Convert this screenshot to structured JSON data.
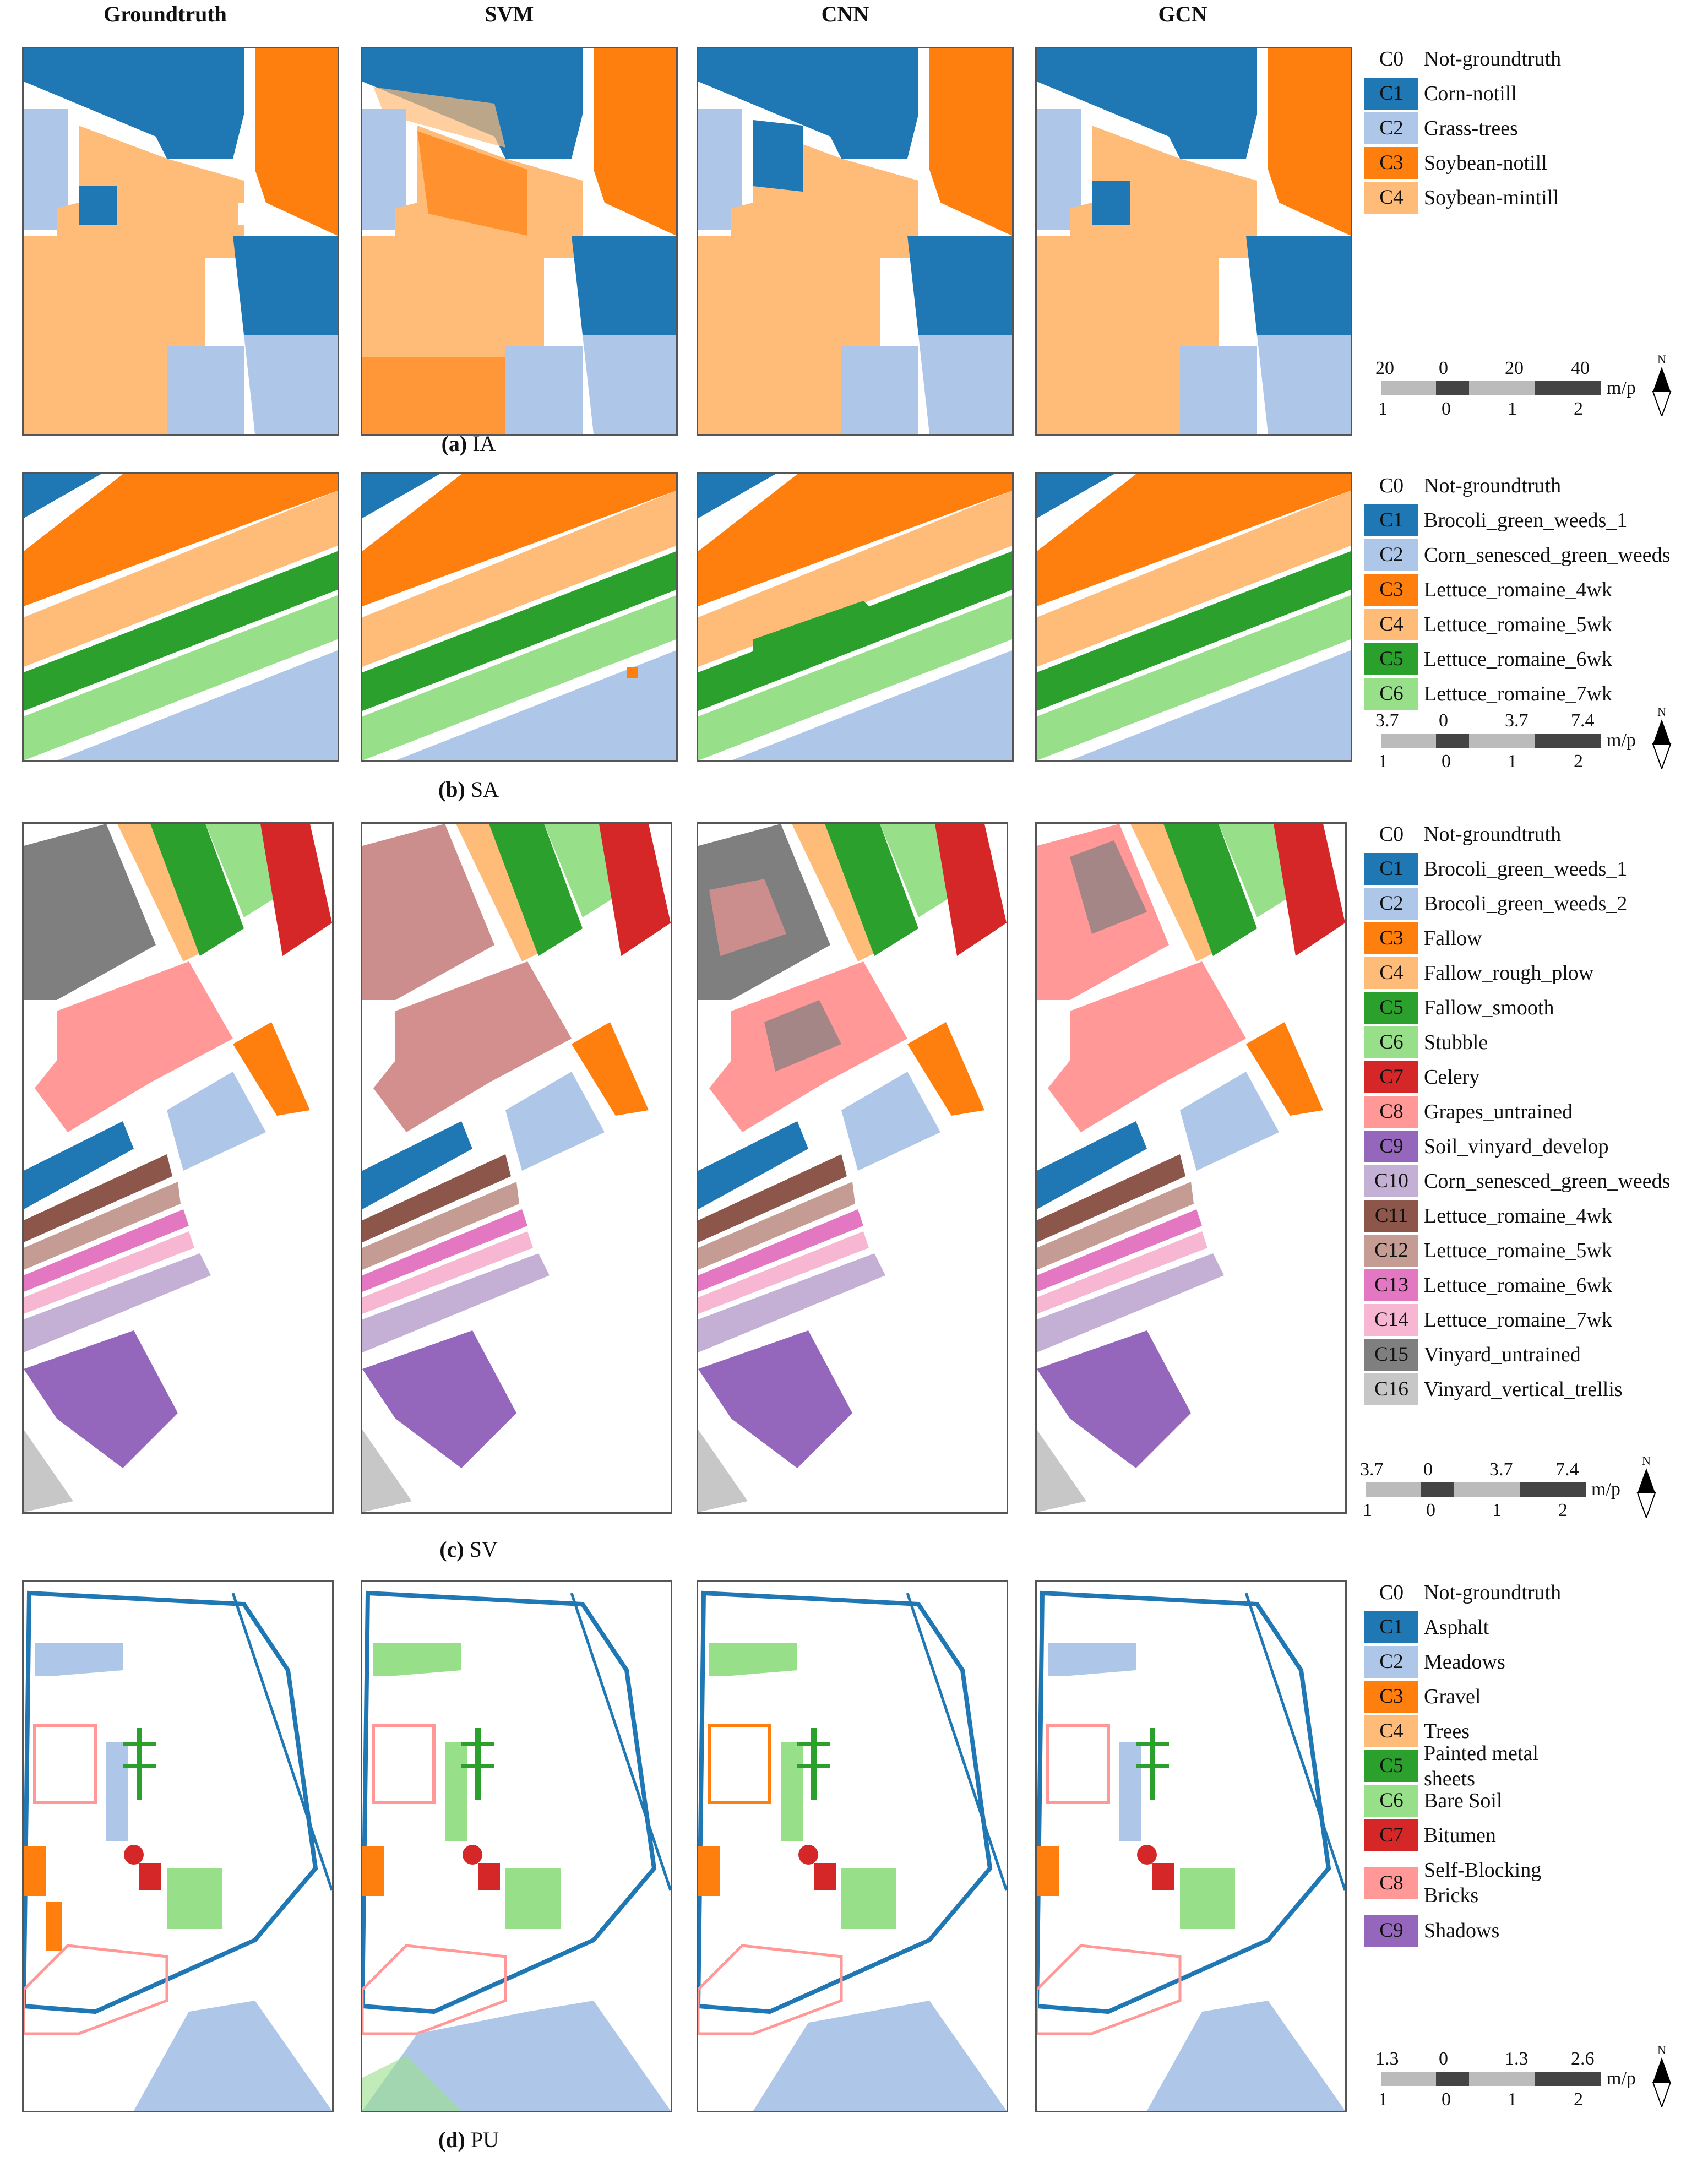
{
  "columns": [
    "Groundtruth",
    "SVM",
    "CNN",
    "GCN"
  ],
  "sections": [
    {
      "caption_letter": "(a)",
      "caption_name": "IA",
      "legend": [
        {
          "code": "C0",
          "label": "Not-groundtruth",
          "color": "#ffffff"
        },
        {
          "code": "C1",
          "label": "Corn-notill",
          "color": "#1f77b4"
        },
        {
          "code": "C2",
          "label": "Grass-trees",
          "color": "#aec7e8"
        },
        {
          "code": "C3",
          "label": "Soybean-notill",
          "color": "#ff7f0e"
        },
        {
          "code": "C4",
          "label": "Soybean-mintill",
          "color": "#ffbb78"
        }
      ],
      "scale": {
        "top": [
          "20",
          "0",
          "20",
          "40"
        ],
        "bottom": [
          "1",
          "0",
          "1",
          "2"
        ],
        "unit": "m/p",
        "north": "N"
      }
    },
    {
      "caption_letter": "(b)",
      "caption_name": "SA",
      "legend": [
        {
          "code": "C0",
          "label": "Not-groundtruth",
          "color": "#ffffff"
        },
        {
          "code": "C1",
          "label": "Brocoli_green_weeds_1",
          "color": "#1f77b4"
        },
        {
          "code": "C2",
          "label": "Corn_senesced_green_weeds",
          "color": "#aec7e8"
        },
        {
          "code": "C3",
          "label": "Lettuce_romaine_4wk",
          "color": "#ff7f0e"
        },
        {
          "code": "C4",
          "label": "Lettuce_romaine_5wk",
          "color": "#ffbb78"
        },
        {
          "code": "C5",
          "label": "Lettuce_romaine_6wk",
          "color": "#2ca02c"
        },
        {
          "code": "C6",
          "label": "Lettuce_romaine_7wk",
          "color": "#98df8a"
        }
      ],
      "scale": {
        "top": [
          "3.7",
          "0",
          "3.7",
          "7.4"
        ],
        "bottom": [
          "1",
          "0",
          "1",
          "2"
        ],
        "unit": "m/p",
        "north": "N"
      }
    },
    {
      "caption_letter": "(c)",
      "caption_name": "SV",
      "legend": [
        {
          "code": "C0",
          "label": "Not-groundtruth",
          "color": "#ffffff"
        },
        {
          "code": "C1",
          "label": "Brocoli_green_weeds_1",
          "color": "#1f77b4"
        },
        {
          "code": "C2",
          "label": "Brocoli_green_weeds_2",
          "color": "#aec7e8"
        },
        {
          "code": "C3",
          "label": "Fallow",
          "color": "#ff7f0e"
        },
        {
          "code": "C4",
          "label": "Fallow_rough_plow",
          "color": "#ffbb78"
        },
        {
          "code": "C5",
          "label": "Fallow_smooth",
          "color": "#2ca02c"
        },
        {
          "code": "C6",
          "label": "Stubble",
          "color": "#98df8a"
        },
        {
          "code": "C7",
          "label": "Celery",
          "color": "#d62728"
        },
        {
          "code": "C8",
          "label": "Grapes_untrained",
          "color": "#ff9896"
        },
        {
          "code": "C9",
          "label": "Soil_vinyard_develop",
          "color": "#9467bd"
        },
        {
          "code": "C10",
          "label": "Corn_senesced_green_weeds",
          "color": "#c5b0d5"
        },
        {
          "code": "C11",
          "label": "Lettuce_romaine_4wk",
          "color": "#8c564b"
        },
        {
          "code": "C12",
          "label": "Lettuce_romaine_5wk",
          "color": "#c49c94"
        },
        {
          "code": "C13",
          "label": "Lettuce_romaine_6wk",
          "color": "#e377c2"
        },
        {
          "code": "C14",
          "label": "Lettuce_romaine_7wk",
          "color": "#f7b6d2"
        },
        {
          "code": "C15",
          "label": "Vinyard_untrained",
          "color": "#7f7f7f"
        },
        {
          "code": "C16",
          "label": "Vinyard_vertical_trellis",
          "color": "#c7c7c7"
        }
      ],
      "scale": {
        "top": [
          "3.7",
          "0",
          "3.7",
          "7.4"
        ],
        "bottom": [
          "1",
          "0",
          "1",
          "2"
        ],
        "unit": "m/p",
        "north": "N"
      }
    },
    {
      "caption_letter": "(d)",
      "caption_name": "PU",
      "legend": [
        {
          "code": "C0",
          "label": "Not-groundtruth",
          "color": "#ffffff"
        },
        {
          "code": "C1",
          "label": "Asphalt",
          "color": "#1f77b4"
        },
        {
          "code": "C2",
          "label": "Meadows",
          "color": "#aec7e8"
        },
        {
          "code": "C3",
          "label": "Gravel",
          "color": "#ff7f0e"
        },
        {
          "code": "C4",
          "label": "Trees",
          "color": "#ffbb78"
        },
        {
          "code": "C5",
          "label": "Painted metal sheets",
          "color": "#2ca02c"
        },
        {
          "code": "C6",
          "label": "Bare Soil",
          "color": "#98df8a"
        },
        {
          "code": "C7",
          "label": "Bitumen",
          "color": "#d62728"
        },
        {
          "code": "C8",
          "label": "Self-Blocking Bricks",
          "color": "#ff9896"
        },
        {
          "code": "C9",
          "label": "Shadows",
          "color": "#9467bd"
        }
      ],
      "scale": {
        "top": [
          "1.3",
          "0",
          "1.3",
          "2.6"
        ],
        "bottom": [
          "1",
          "0",
          "1",
          "2"
        ],
        "unit": "m/p",
        "north": "N"
      }
    }
  ]
}
